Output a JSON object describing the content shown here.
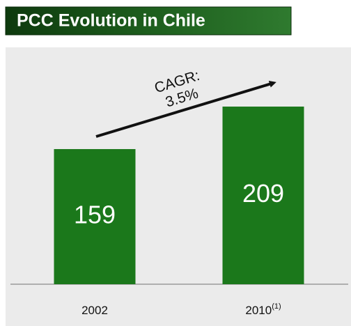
{
  "chart_data": {
    "type": "bar",
    "title": "PCC Evolution in Chile",
    "categories": [
      "2002",
      "2010"
    ],
    "category_notes": [
      null,
      "(1)"
    ],
    "values": [
      159,
      209
    ],
    "color": "#1b781b",
    "annotation": [
      "CAGR:",
      "3.5%"
    ]
  }
}
